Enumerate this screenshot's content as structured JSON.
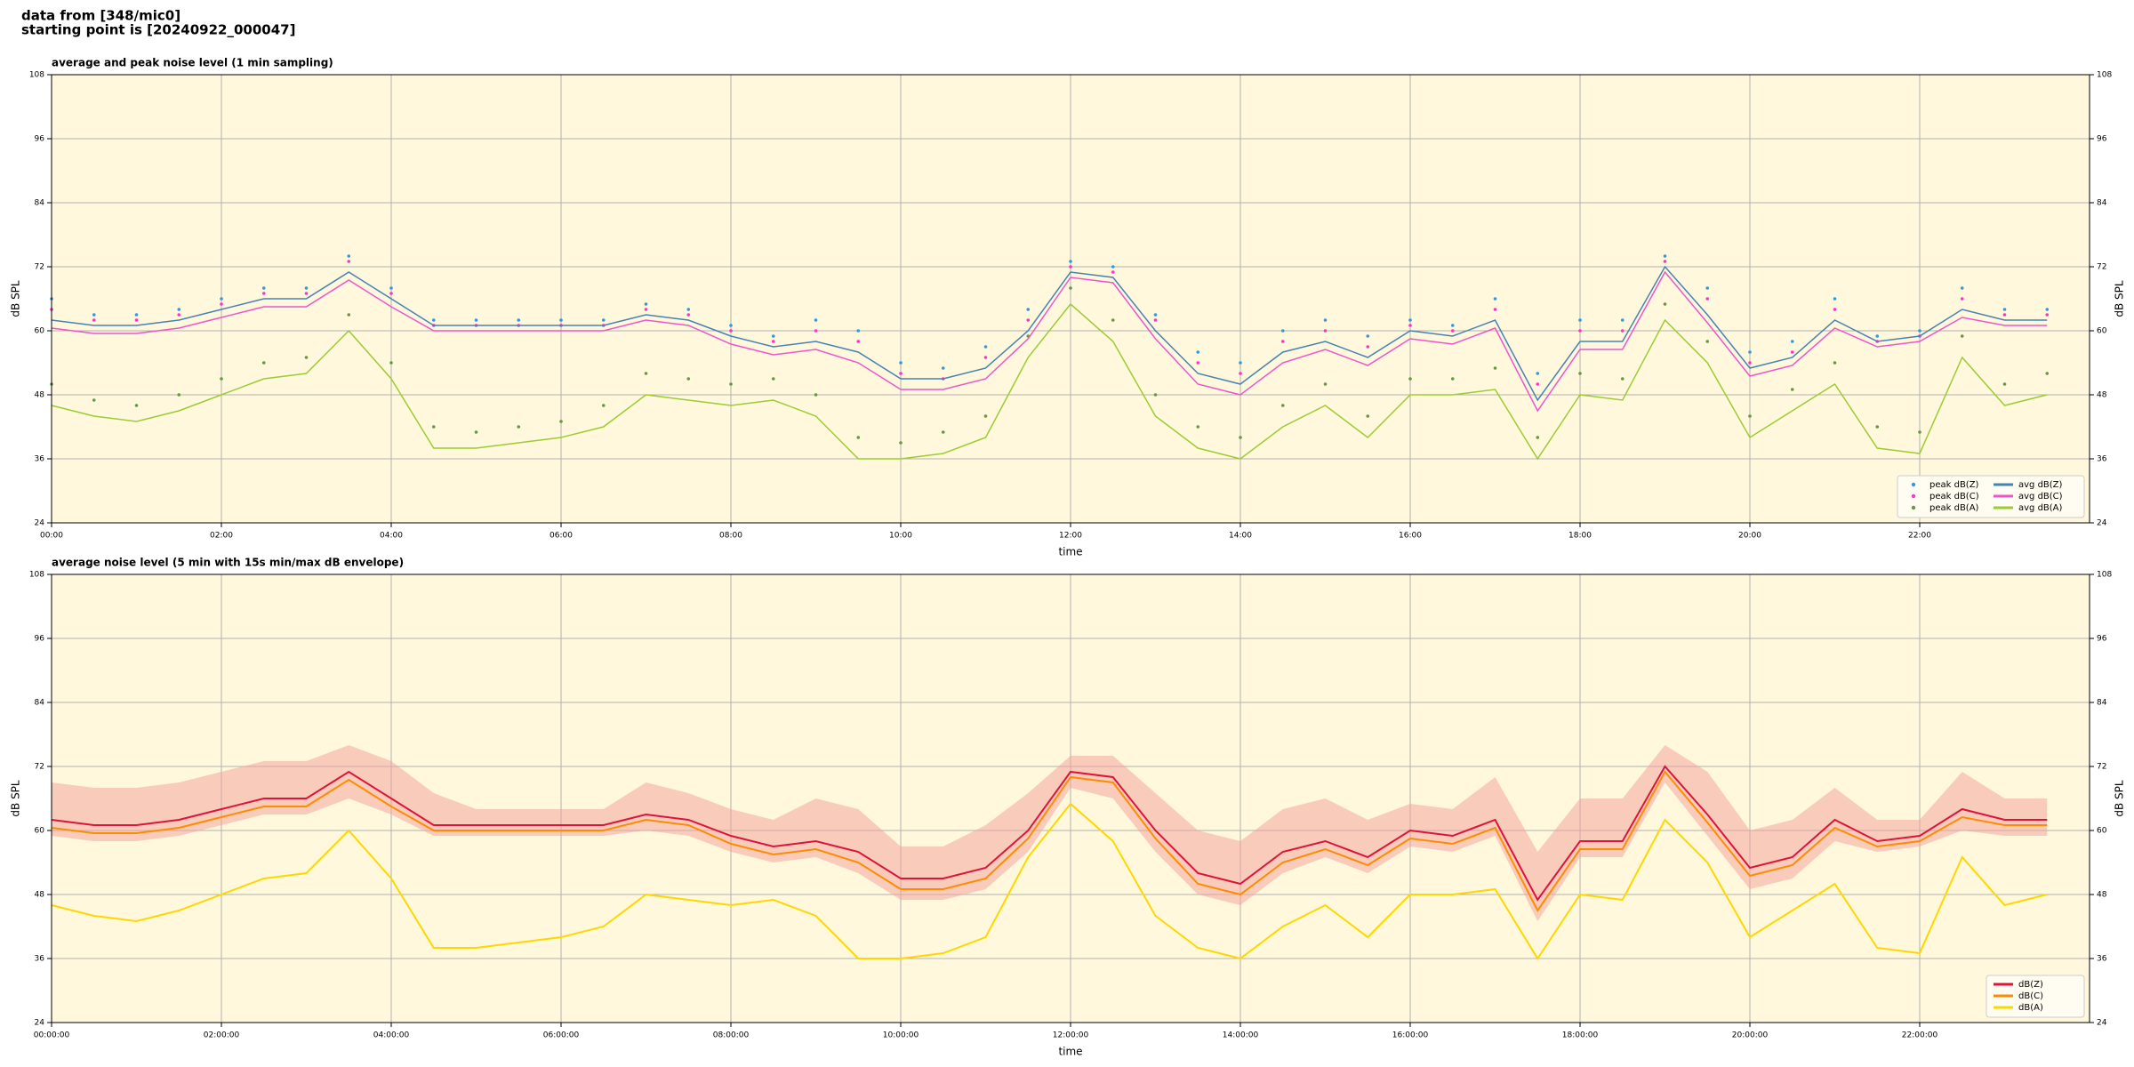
{
  "header": {
    "lines": [
      "data from [348/mic0]",
      "starting point is [20240922_000047]"
    ]
  },
  "chart_data": [
    {
      "type": "line",
      "title": "average and peak noise level (1 min sampling)",
      "xlabel": "time",
      "ylabel": "dB SPL",
      "xlim": [
        0,
        24
      ],
      "ylim": [
        24,
        108
      ],
      "yticks": [
        24,
        36,
        48,
        60,
        72,
        84,
        96,
        108
      ],
      "xticks": [
        {
          "value": 0,
          "label": "00:00"
        },
        {
          "value": 2,
          "label": "02:00"
        },
        {
          "value": 4,
          "label": "04:00"
        },
        {
          "value": 6,
          "label": "06:00"
        },
        {
          "value": 8,
          "label": "08:00"
        },
        {
          "value": 10,
          "label": "10:00"
        },
        {
          "value": 12,
          "label": "12:00"
        },
        {
          "value": 14,
          "label": "14:00"
        },
        {
          "value": 16,
          "label": "16:00"
        },
        {
          "value": 18,
          "label": "18:00"
        },
        {
          "value": 20,
          "label": "20:00"
        },
        {
          "value": 22,
          "label": "22:00"
        }
      ],
      "grid": true,
      "legend": "lower right",
      "legend_columns": 2,
      "x": [
        0,
        0.5,
        1,
        1.5,
        2,
        2.5,
        3,
        3.5,
        4,
        4.5,
        5,
        5.5,
        6,
        6.5,
        7,
        7.5,
        8,
        8.5,
        9,
        9.5,
        10,
        10.5,
        11,
        11.5,
        12,
        12.5,
        13,
        13.5,
        14,
        14.5,
        15,
        15.5,
        16,
        16.5,
        17,
        17.5,
        18,
        18.5,
        19,
        19.5,
        20,
        20.5,
        21,
        21.5,
        22,
        22.5,
        23,
        23.5
      ],
      "series": [
        {
          "name": "peak dB(Z)",
          "style": "dots",
          "color": "#3399dd",
          "values": [
            66,
            63,
            63,
            64,
            66,
            68,
            68,
            74,
            68,
            62,
            62,
            62,
            62,
            62,
            65,
            64,
            61,
            59,
            62,
            60,
            54,
            53,
            57,
            64,
            73,
            72,
            63,
            56,
            54,
            60,
            62,
            59,
            62,
            61,
            66,
            52,
            62,
            62,
            74,
            68,
            56,
            58,
            66,
            59,
            60,
            68,
            64,
            64
          ]
        },
        {
          "name": "peak dB(C)",
          "style": "dots",
          "color": "#ff33cc",
          "values": [
            64,
            62,
            62,
            63,
            65,
            67,
            67,
            73,
            67,
            61,
            61,
            61,
            61,
            61,
            64,
            63,
            60,
            58,
            60,
            58,
            52,
            51,
            55,
            62,
            72,
            71,
            62,
            54,
            52,
            58,
            60,
            57,
            61,
            60,
            64,
            50,
            60,
            60,
            73,
            66,
            54,
            56,
            64,
            58,
            59,
            66,
            63,
            63
          ]
        },
        {
          "name": "peak dB(A)",
          "style": "dots",
          "color": "#669944",
          "values": [
            50,
            47,
            46,
            48,
            51,
            54,
            55,
            63,
            54,
            42,
            41,
            42,
            43,
            46,
            52,
            51,
            50,
            51,
            48,
            40,
            39,
            41,
            44,
            59,
            68,
            62,
            48,
            42,
            40,
            46,
            50,
            44,
            51,
            51,
            53,
            40,
            52,
            51,
            65,
            58,
            44,
            49,
            54,
            42,
            41,
            59,
            50,
            52
          ]
        },
        {
          "name": "avg dB(Z)",
          "style": "line",
          "color": "#4682b4",
          "values": [
            62,
            61,
            61,
            62,
            64,
            66,
            66,
            71,
            66,
            61,
            61,
            61,
            61,
            61,
            63,
            62,
            59,
            57,
            58,
            56,
            51,
            51,
            53,
            60,
            71,
            70,
            60,
            52,
            50,
            56,
            58,
            55,
            60,
            59,
            62,
            47,
            58,
            58,
            72,
            63,
            53,
            55,
            62,
            58,
            59,
            64,
            62,
            62
          ]
        },
        {
          "name": "avg dB(C)",
          "style": "line",
          "color": "#ee55cc",
          "values": [
            60.5,
            59.5,
            59.5,
            60.5,
            62.5,
            64.5,
            64.5,
            69.5,
            64.5,
            60,
            60,
            60,
            60,
            60,
            62,
            61,
            57.5,
            55.5,
            56.5,
            54,
            49,
            49,
            51,
            58.5,
            70,
            69,
            58.5,
            50,
            48,
            54,
            56.5,
            53.5,
            58.5,
            57.5,
            60.5,
            45,
            56.5,
            56.5,
            71,
            61.5,
            51.5,
            53.5,
            60.5,
            57,
            58,
            62.5,
            61,
            61
          ]
        },
        {
          "name": "avg dB(A)",
          "style": "line",
          "color": "#9acd32",
          "values": [
            46,
            44,
            43,
            45,
            48,
            51,
            52,
            60,
            51,
            38,
            38,
            39,
            40,
            42,
            48,
            47,
            46,
            47,
            44,
            36,
            36,
            37,
            40,
            55,
            65,
            58,
            44,
            38,
            36,
            42,
            46,
            40,
            48,
            48,
            49,
            36,
            48,
            47,
            62,
            54,
            40,
            45,
            50,
            38,
            37,
            55,
            46,
            48
          ]
        }
      ]
    },
    {
      "type": "line",
      "title": "average noise level (5 min with 15s min/max dB envelope)",
      "xlabel": "time",
      "ylabel": "dB SPL",
      "xlim": [
        0,
        24
      ],
      "ylim": [
        24,
        108
      ],
      "yticks": [
        24,
        36,
        48,
        60,
        72,
        84,
        96,
        108
      ],
      "xticks": [
        {
          "value": 0,
          "label": "00:00:00"
        },
        {
          "value": 2,
          "label": "02:00:00"
        },
        {
          "value": 4,
          "label": "04:00:00"
        },
        {
          "value": 6,
          "label": "06:00:00"
        },
        {
          "value": 8,
          "label": "08:00:00"
        },
        {
          "value": 10,
          "label": "10:00:00"
        },
        {
          "value": 12,
          "label": "12:00:00"
        },
        {
          "value": 14,
          "label": "14:00:00"
        },
        {
          "value": 16,
          "label": "16:00:00"
        },
        {
          "value": 18,
          "label": "18:00:00"
        },
        {
          "value": 20,
          "label": "20:00:00"
        },
        {
          "value": 22,
          "label": "22:00:00"
        }
      ],
      "grid": true,
      "legend": "lower right",
      "legend_columns": 1,
      "x": [
        0,
        0.5,
        1,
        1.5,
        2,
        2.5,
        3,
        3.5,
        4,
        4.5,
        5,
        5.5,
        6,
        6.5,
        7,
        7.5,
        8,
        8.5,
        9,
        9.5,
        10,
        10.5,
        11,
        11.5,
        12,
        12.5,
        13,
        13.5,
        14,
        14.5,
        15,
        15.5,
        16,
        16.5,
        17,
        17.5,
        18,
        18.5,
        19,
        19.5,
        20,
        20.5,
        21,
        21.5,
        22,
        22.5,
        23,
        23.5
      ],
      "envelope": {
        "color": "#f4a6a0",
        "high": [
          69,
          68,
          68,
          69,
          71,
          73,
          73,
          76,
          73,
          67,
          64,
          64,
          64,
          64,
          69,
          67,
          64,
          62,
          66,
          64,
          57,
          57,
          61,
          67,
          74,
          74,
          67,
          60,
          58,
          64,
          66,
          62,
          65,
          64,
          70,
          56,
          66,
          66,
          76,
          71,
          60,
          62,
          68,
          62,
          62,
          71,
          66,
          66
        ],
        "low": [
          59,
          58,
          58,
          59,
          61,
          63,
          63,
          66,
          63,
          59,
          59,
          59,
          59,
          59,
          60,
          59,
          56,
          54,
          55,
          52,
          47,
          47,
          49,
          56,
          68,
          66,
          56,
          48,
          46,
          52,
          55,
          52,
          57,
          56,
          59,
          43,
          55,
          55,
          69,
          59,
          49,
          51,
          58,
          56,
          57,
          60,
          59,
          59
        ]
      },
      "series": [
        {
          "name": "dB(Z)",
          "style": "line",
          "color": "#dc143c",
          "values": [
            62,
            61,
            61,
            62,
            64,
            66,
            66,
            71,
            66,
            61,
            61,
            61,
            61,
            61,
            63,
            62,
            59,
            57,
            58,
            56,
            51,
            51,
            53,
            60,
            71,
            70,
            60,
            52,
            50,
            56,
            58,
            55,
            60,
            59,
            62,
            47,
            58,
            58,
            72,
            63,
            53,
            55,
            62,
            58,
            59,
            64,
            62,
            62
          ]
        },
        {
          "name": "dB(C)",
          "style": "line",
          "color": "#ff8c00",
          "values": [
            60.5,
            59.5,
            59.5,
            60.5,
            62.5,
            64.5,
            64.5,
            69.5,
            64.5,
            60,
            60,
            60,
            60,
            60,
            62,
            61,
            57.5,
            55.5,
            56.5,
            54,
            49,
            49,
            51,
            58.5,
            70,
            69,
            58.5,
            50,
            48,
            54,
            56.5,
            53.5,
            58.5,
            57.5,
            60.5,
            45,
            56.5,
            56.5,
            71,
            61.5,
            51.5,
            53.5,
            60.5,
            57,
            58,
            62.5,
            61,
            61
          ]
        },
        {
          "name": "dB(A)",
          "style": "line",
          "color": "#ffd700",
          "values": [
            46,
            44,
            43,
            45,
            48,
            51,
            52,
            60,
            51,
            38,
            38,
            39,
            40,
            42,
            48,
            47,
            46,
            47,
            44,
            36,
            36,
            37,
            40,
            55,
            65,
            58,
            44,
            38,
            36,
            42,
            46,
            40,
            48,
            48,
            49,
            36,
            48,
            47,
            62,
            54,
            40,
            45,
            50,
            38,
            37,
            55,
            46,
            48
          ]
        }
      ]
    }
  ]
}
